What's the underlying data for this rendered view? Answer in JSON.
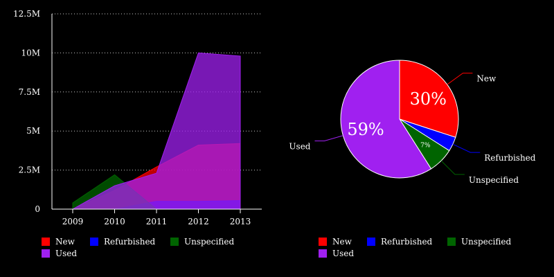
{
  "colors": {
    "New": "#ff0000",
    "Refurbished": "#0000ff",
    "Unspecified": "#006400",
    "Used": "#a020f0"
  },
  "chart_data": [
    {
      "type": "area",
      "title": "",
      "xlabel": "",
      "ylabel": "",
      "categories": [
        "2009",
        "2010",
        "2011",
        "2012",
        "2013"
      ],
      "ylim": [
        0,
        12500000
      ],
      "y_ticks": [
        0,
        2500000,
        5000000,
        7500000,
        10000000,
        12500000
      ],
      "y_tick_labels": [
        "0",
        "2.5M",
        "5M",
        "7.5M",
        "10M",
        "12.5M"
      ],
      "grid": true,
      "series": [
        {
          "name": "New",
          "values": [
            0,
            1200000,
            2700000,
            4100000,
            4200000
          ]
        },
        {
          "name": "Refurbished",
          "values": [
            0,
            0,
            500000,
            500000,
            550000
          ]
        },
        {
          "name": "Unspecified",
          "values": [
            400000,
            2200000,
            0,
            0,
            0
          ]
        },
        {
          "name": "Used",
          "values": [
            0,
            1500000,
            2300000,
            10000000,
            9800000
          ]
        }
      ],
      "legend": [
        "New",
        "Refurbished",
        "Unspecified",
        "Used"
      ],
      "legend_position": "bottom"
    },
    {
      "type": "pie",
      "title": "",
      "slices": [
        {
          "name": "New",
          "value": 30,
          "label": "30%",
          "callout": "New"
        },
        {
          "name": "Refurbished",
          "value": 4,
          "label": "",
          "callout": "Refurbished"
        },
        {
          "name": "Unspecified",
          "value": 7,
          "label": "7%",
          "callout": "Unspecified"
        },
        {
          "name": "Used",
          "value": 59,
          "label": "59%",
          "callout": "Used"
        }
      ],
      "legend": [
        "New",
        "Refurbished",
        "Unspecified",
        "Used"
      ],
      "legend_position": "bottom"
    }
  ]
}
